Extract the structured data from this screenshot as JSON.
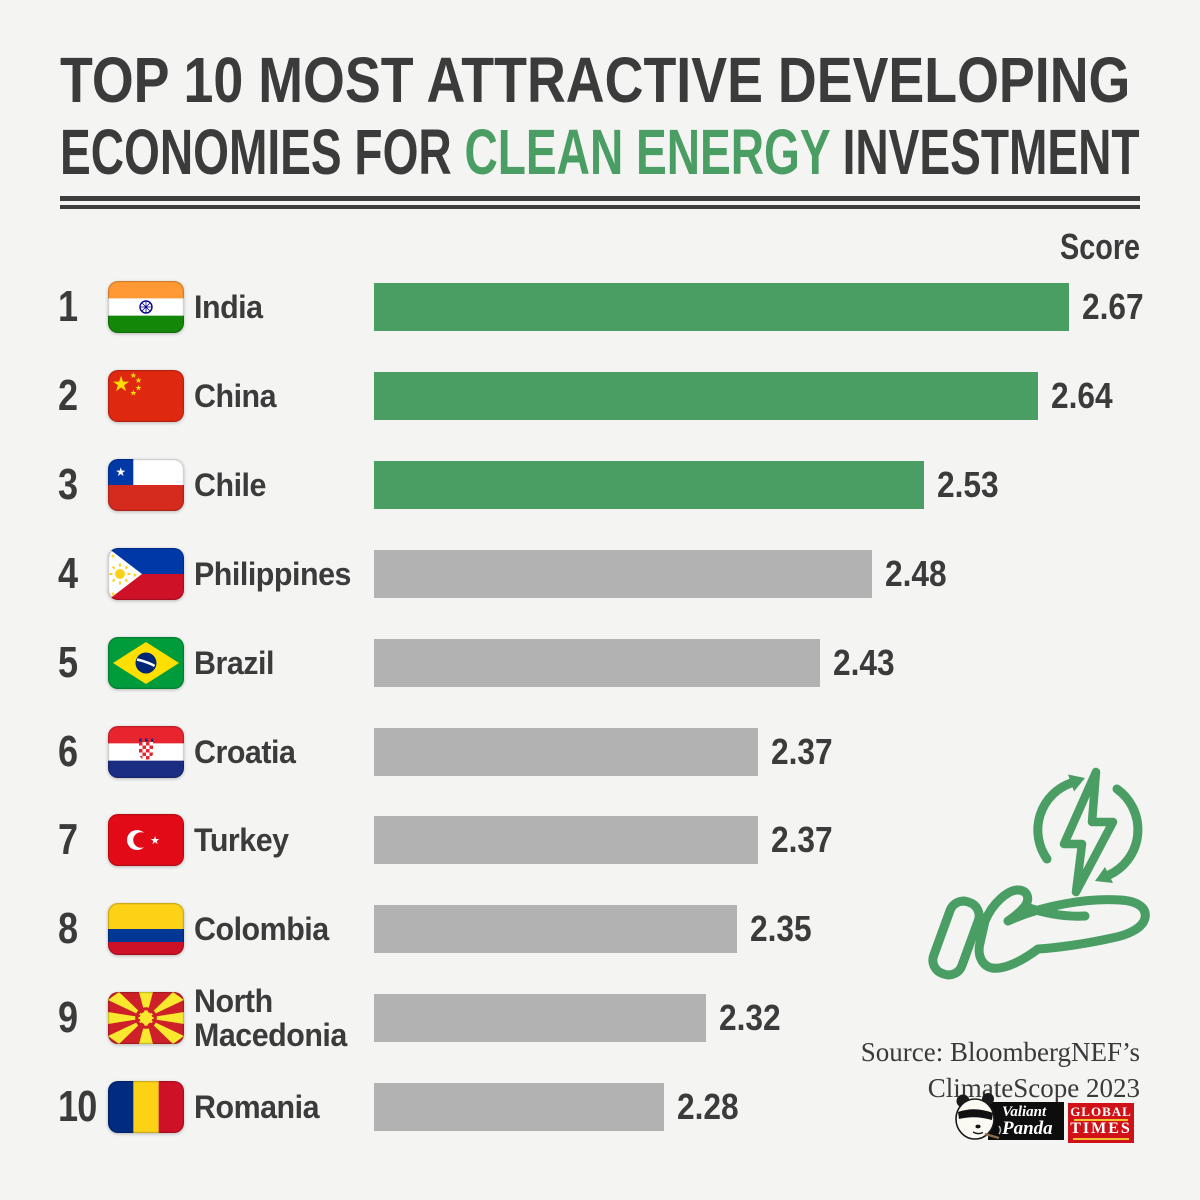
{
  "colors": {
    "background": "#f4f4f3",
    "text_dark": "#3b3b3b",
    "accent_green": "#4a9e64",
    "gray_bar": "#b2b2b2"
  },
  "title": {
    "line1": "TOP 10 MOST ATTRACTIVE DEVELOPING",
    "line2_prefix": "ECONOMIES FOR ",
    "line2_highlight": "CLEAN ENERGY",
    "line2_suffix": " INVESTMENT"
  },
  "score_header": "Score",
  "chart_data": {
    "type": "bar",
    "orientation": "horizontal",
    "title": "Top 10 most attractive developing economies for clean energy investment",
    "value_label": "Score",
    "xlim": [
      2.0,
      2.67
    ],
    "categories": [
      "India",
      "China",
      "Chile",
      "Philippines",
      "Brazil",
      "Croatia",
      "Turkey",
      "Colombia",
      "North Macedonia",
      "Romania"
    ],
    "values": [
      2.67,
      2.64,
      2.53,
      2.48,
      2.43,
      2.37,
      2.37,
      2.35,
      2.32,
      2.28
    ],
    "colors": {
      "highlight_bar": "#4a9e64",
      "default_bar": "#b2b2b2"
    },
    "rows": [
      {
        "rank": "1",
        "country": "India",
        "score": 2.67,
        "flag": "india",
        "highlight": true
      },
      {
        "rank": "2",
        "country": "China",
        "score": 2.64,
        "flag": "china",
        "highlight": true
      },
      {
        "rank": "3",
        "country": "Chile",
        "score": 2.53,
        "flag": "chile",
        "highlight": true
      },
      {
        "rank": "4",
        "country": "Philippines",
        "score": 2.48,
        "flag": "philippines",
        "highlight": false
      },
      {
        "rank": "5",
        "country": "Brazil",
        "score": 2.43,
        "flag": "brazil",
        "highlight": false
      },
      {
        "rank": "6",
        "country": "Croatia",
        "score": 2.37,
        "flag": "croatia",
        "highlight": false
      },
      {
        "rank": "7",
        "country": "Turkey",
        "score": 2.37,
        "flag": "turkey",
        "highlight": false
      },
      {
        "rank": "8",
        "country": "Colombia",
        "score": 2.35,
        "flag": "colombia",
        "highlight": false
      },
      {
        "rank": "9",
        "country": "North Macedonia",
        "score": 2.32,
        "flag": "north-macedonia",
        "highlight": false
      },
      {
        "rank": "10",
        "country": "Romania",
        "score": 2.28,
        "flag": "romania",
        "highlight": false
      }
    ]
  },
  "source": {
    "line1": "Source: BloombergNEF’s",
    "line2": "ClimateScope 2023"
  },
  "logos": {
    "valiant_panda": {
      "line1": "Valiant",
      "line2": "Panda"
    },
    "global_times": {
      "line1": "GLOBAL",
      "line2": "TIMES"
    }
  }
}
